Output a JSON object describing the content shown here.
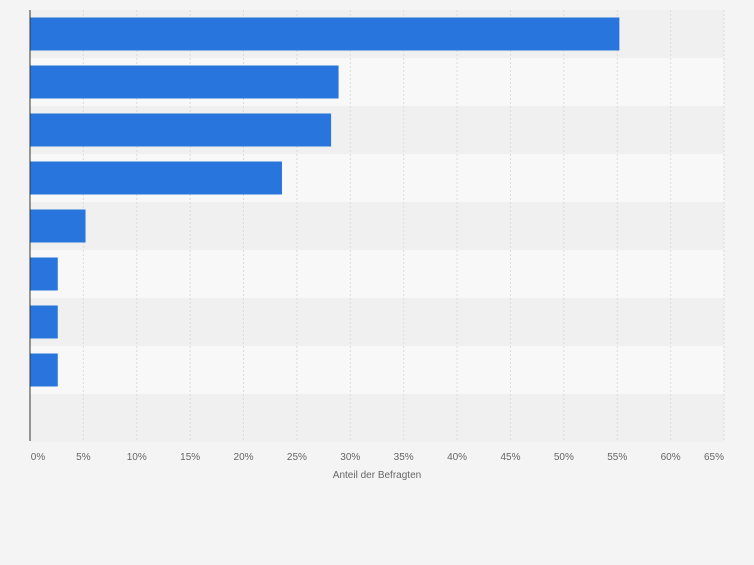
{
  "chart_data": {
    "type": "bar",
    "orientation": "horizontal",
    "categories": [
      "",
      "",
      "",
      "",
      "",
      "",
      "",
      ""
    ],
    "values": [
      55.2,
      28.9,
      28.2,
      23.6,
      5.2,
      2.6,
      2.6,
      2.6
    ],
    "xlabel": "Anteil der Befragten",
    "ylabel": "",
    "xlim": [
      0,
      65
    ],
    "xticks": [
      "0%",
      "5%",
      "10%",
      "15%",
      "20%",
      "25%",
      "30%",
      "35%",
      "40%",
      "45%",
      "50%",
      "55%",
      "60%",
      "65%"
    ],
    "grid": true,
    "legend": "none"
  },
  "colors": {
    "bar": "#2876dd",
    "band_dark": "#f0f0f0",
    "band_light": "#f8f8f8",
    "gridline": "#dcdcdc",
    "axis": "#333333",
    "background": "#f4f4f4"
  }
}
